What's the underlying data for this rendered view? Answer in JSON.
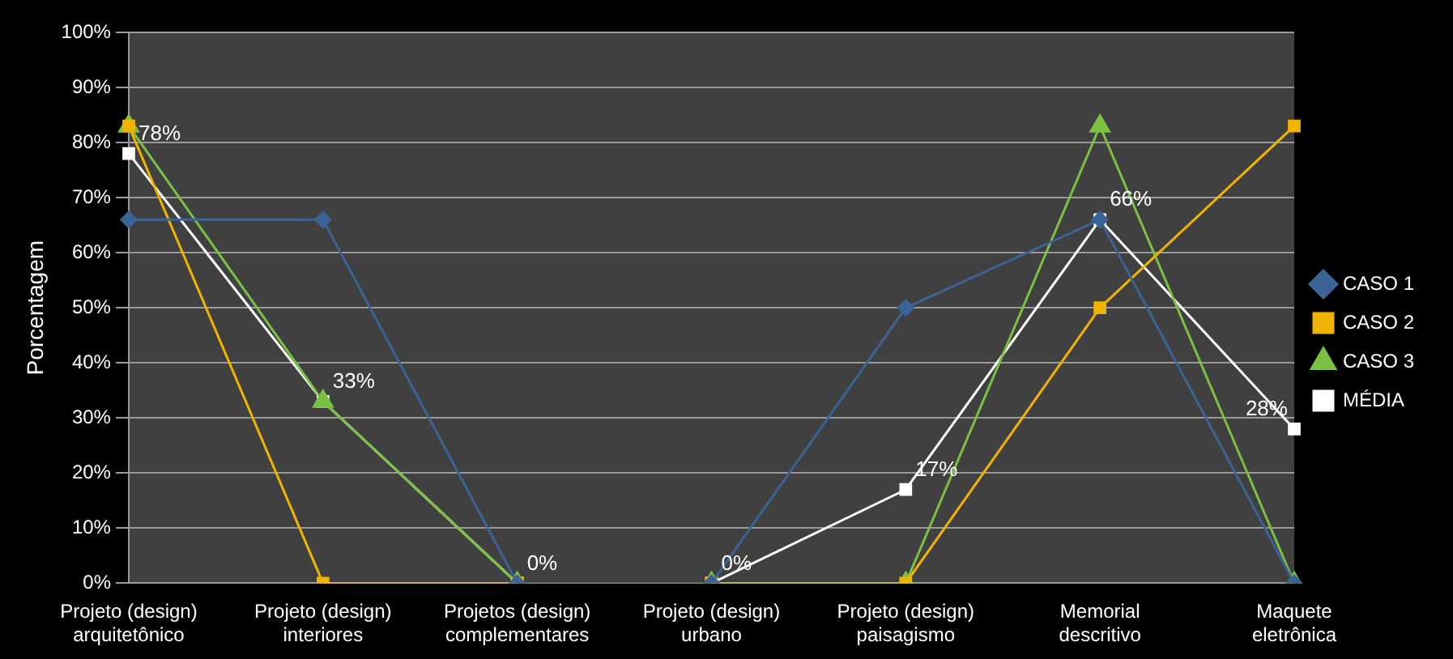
{
  "chart_data": {
    "type": "line",
    "ylabel": "Porcentagem",
    "categories": [
      "Projeto (design) arquitetônico",
      "Projeto (design) interiores",
      "Projetos (design) complementares",
      "Projeto (design) urbano",
      "Projeto (design) paisagismo",
      "Memorial descritivo",
      "Maquete eletrônica"
    ],
    "series": [
      {
        "name": "CASO 1",
        "color": "#3a6496",
        "marker": "diamond",
        "values": [
          66,
          66,
          0,
          0,
          50,
          66,
          0
        ]
      },
      {
        "name": "CASO 2",
        "color": "#f0b400",
        "marker": "square",
        "values": [
          83,
          0,
          0,
          0,
          0,
          50,
          83
        ]
      },
      {
        "name": "CASO 3",
        "color": "#7ac143",
        "marker": "triangle",
        "values": [
          83,
          33,
          0,
          0,
          0,
          83,
          0
        ]
      },
      {
        "name": "MÉDIA",
        "color": "#ffffff",
        "marker": "square",
        "values": [
          78,
          33,
          0,
          0,
          17,
          66,
          28
        ],
        "value_labels": [
          "78%",
          "33%",
          "0%",
          "0%",
          "17%",
          "66%",
          "28%"
        ]
      }
    ],
    "ylim": [
      0,
      100
    ],
    "yticks": [
      {
        "value": 0,
        "label": "0%"
      },
      {
        "value": 10,
        "label": "10%"
      },
      {
        "value": 20,
        "label": "20%"
      },
      {
        "value": 30,
        "label": "30%"
      },
      {
        "value": 40,
        "label": "40%"
      },
      {
        "value": 50,
        "label": "50%"
      },
      {
        "value": 60,
        "label": "60%"
      },
      {
        "value": 70,
        "label": "70%"
      },
      {
        "value": 80,
        "label": "80%"
      },
      {
        "value": 90,
        "label": "90%"
      },
      {
        "value": 100,
        "label": "100%"
      }
    ],
    "grid": "y",
    "legend": "right"
  }
}
